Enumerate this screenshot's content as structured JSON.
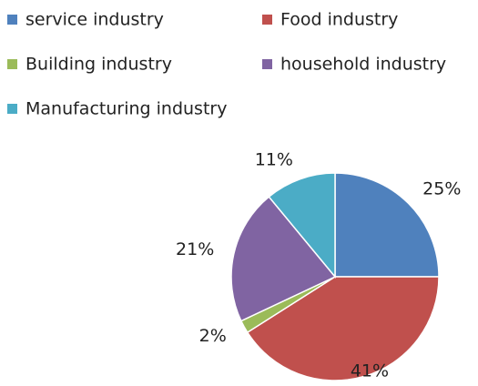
{
  "chart_data": {
    "type": "pie",
    "categories": [
      "service industry",
      "Food industry",
      "Building industry",
      "household industry",
      "Manufacturing industry"
    ],
    "values": [
      25,
      41,
      2,
      21,
      11
    ],
    "value_labels": [
      "25%",
      "41%",
      "2%",
      "21%",
      "11%"
    ],
    "colors": [
      "#4f81bd",
      "#c0504d",
      "#9bbb59",
      "#8064a2",
      "#4bacc6"
    ],
    "legend": "top"
  }
}
